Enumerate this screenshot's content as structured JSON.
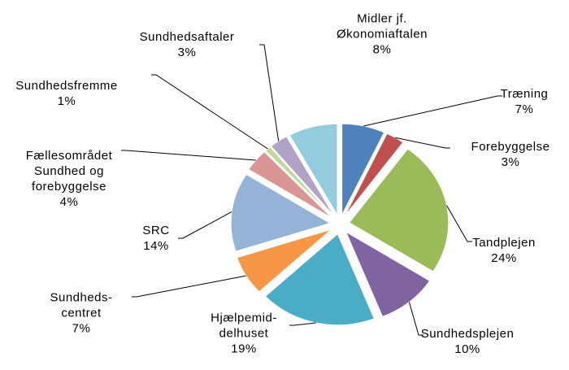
{
  "chart_data": {
    "type": "pie",
    "categories": [
      "Træning",
      "Forebyggelse",
      "Tandplejen",
      "Sundhedsplejen",
      "Hjælpemid-\ndelhuset",
      "Sundheds-\ncentret",
      "SRC",
      "Fællesområdet\nSundhed og\nforebyggelse",
      "Sundhedsfremme",
      "Sundhedsaftaler",
      "Midler jf.\nØkonomiaftalen"
    ],
    "values": [
      7,
      3,
      24,
      10,
      19,
      7,
      14,
      4,
      1,
      3,
      8
    ],
    "value_labels": [
      "7%",
      "3%",
      "24%",
      "10%",
      "19%",
      "7%",
      "14%",
      "4%",
      "1%",
      "3%",
      "8%"
    ],
    "colors": [
      "#4f81bd",
      "#c0504d",
      "#9bbb59",
      "#8064a2",
      "#4bacc6",
      "#f79646",
      "#95b3d7",
      "#d99694",
      "#c3d69b",
      "#b3a2c7",
      "#93cddd"
    ]
  }
}
